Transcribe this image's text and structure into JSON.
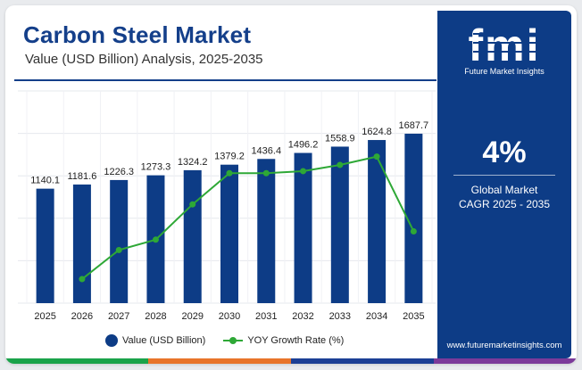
{
  "header": {
    "title": "Carbon Steel Market",
    "subtitle": "Value (USD Billion) Analysis, 2025-2035"
  },
  "sidebar": {
    "logo_text": "fmi",
    "logo_subtitle": "Future Market Insights",
    "cagr_value": "4%",
    "cagr_line1": "Global Market",
    "cagr_line2": "CAGR 2025 - 2035",
    "website": "www.futuremarketinsights.com"
  },
  "legend": {
    "value_label": "Value (USD Billion)",
    "growth_label": "YOY Growth Rate (%)"
  },
  "colors": {
    "bar": "#0d3c86",
    "line": "#2ea836",
    "title": "#143f8a",
    "stripe": [
      "#1aa34a",
      "#e8742a",
      "#1c3f95",
      "#7c3a9a"
    ]
  },
  "chart_data": {
    "type": "bar",
    "categories": [
      "2025",
      "2026",
      "2027",
      "2028",
      "2029",
      "2030",
      "2031",
      "2032",
      "2033",
      "2034",
      "2035"
    ],
    "series": [
      {
        "name": "Value (USD Billion)",
        "type": "bar",
        "values": [
          1140.1,
          1181.6,
          1226.3,
          1273.3,
          1324.2,
          1379.2,
          1436.4,
          1496.2,
          1558.9,
          1624.8,
          1687.7
        ]
      },
      {
        "name": "YOY Growth Rate (%)",
        "type": "line",
        "values": [
          null,
          3.64,
          3.78,
          3.83,
          4.0,
          4.15,
          4.15,
          4.16,
          4.19,
          4.23,
          3.87
        ]
      }
    ],
    "data_labels": [
      "1140.1",
      "1181.6",
      "1226.3",
      "1273.3",
      "1324.2",
      "1379.2",
      "1436.4",
      "1496.2",
      "1558.9",
      "1624.8",
      "1687.7"
    ],
    "grid": true,
    "legend_position": "bottom"
  }
}
